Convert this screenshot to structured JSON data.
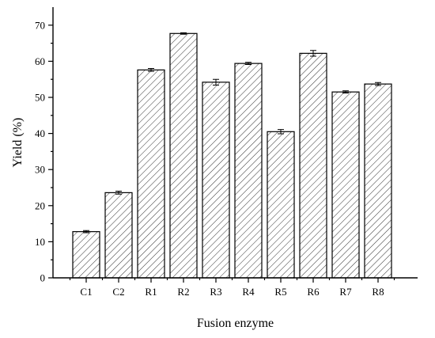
{
  "chart_data": {
    "type": "bar",
    "categories": [
      "C1",
      "C2",
      "R1",
      "R2",
      "R3",
      "R4",
      "R5",
      "R6",
      "R7",
      "R8"
    ],
    "values": [
      12.8,
      23.6,
      57.6,
      67.7,
      54.2,
      59.4,
      40.5,
      62.2,
      51.5,
      53.7
    ],
    "errors": [
      0.3,
      0.4,
      0.4,
      0.2,
      0.8,
      0.3,
      0.6,
      0.8,
      0.3,
      0.4
    ],
    "xlabel": "Fusion enzyme",
    "ylabel": "Yield (%)",
    "ylim": [
      0,
      75
    ],
    "yticks": [
      0,
      10,
      20,
      30,
      40,
      50,
      60,
      70
    ],
    "grid": false,
    "pattern": "diagonal-hatch",
    "bar_color": "#ffffff",
    "line_color": "#000000"
  }
}
